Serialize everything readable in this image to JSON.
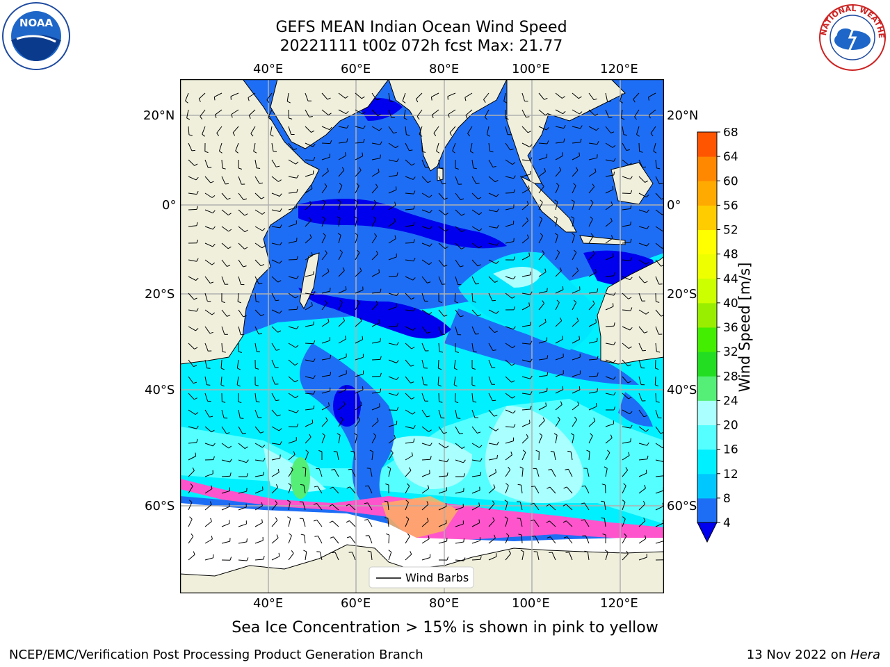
{
  "title": {
    "line1": "GEFS MEAN Indian Ocean Wind Speed",
    "line2": "20221111 t00z 072h fcst   Max: 21.77"
  },
  "map": {
    "lon_labels": [
      "40°E",
      "60°E",
      "80°E",
      "100°E",
      "120°E"
    ],
    "lat_labels": [
      "20°N",
      "0°",
      "20°S",
      "40°S",
      "60°S"
    ],
    "legend_label": "Wind Barbs",
    "land_color": "#efefdc",
    "ocean_palette": [
      "#0000ee",
      "#1e5af0",
      "#0a8cff",
      "#00e6ff",
      "#55ffff",
      "#aaffff",
      "#55ee77"
    ],
    "ice_palette": [
      "#ff55cc",
      "#ff99aa",
      "#ffb060",
      "#ffd040"
    ]
  },
  "colorbar": {
    "label": "Wind Speed [m/s]",
    "ticks": [
      "4",
      "8",
      "12",
      "16",
      "20",
      "24",
      "28",
      "32",
      "36",
      "40",
      "44",
      "48",
      "52",
      "56",
      "60",
      "64",
      "68"
    ],
    "colors": [
      "#1e6ef5",
      "#00c8ff",
      "#00f0ff",
      "#55ffff",
      "#aaffff",
      "#55ee77",
      "#22dd22",
      "#44ee00",
      "#99ee00",
      "#ccff00",
      "#eeff00",
      "#ffff00",
      "#ffcc00",
      "#ffaa00",
      "#ff8800",
      "#ff5500",
      "#ff2200",
      "#ff0000"
    ]
  },
  "note": "Sea Ice Concentration > 15% is shown in pink to yellow",
  "footer": {
    "left": "NCEP/EMC/Verification Post Processing Product Generation Branch",
    "right_prefix": "13 Nov 2022 on ",
    "right_italic": "Hera"
  },
  "logos": {
    "noaa_text": "NOAA",
    "nws_text": "NATIONAL WEATHER SERVICE"
  }
}
